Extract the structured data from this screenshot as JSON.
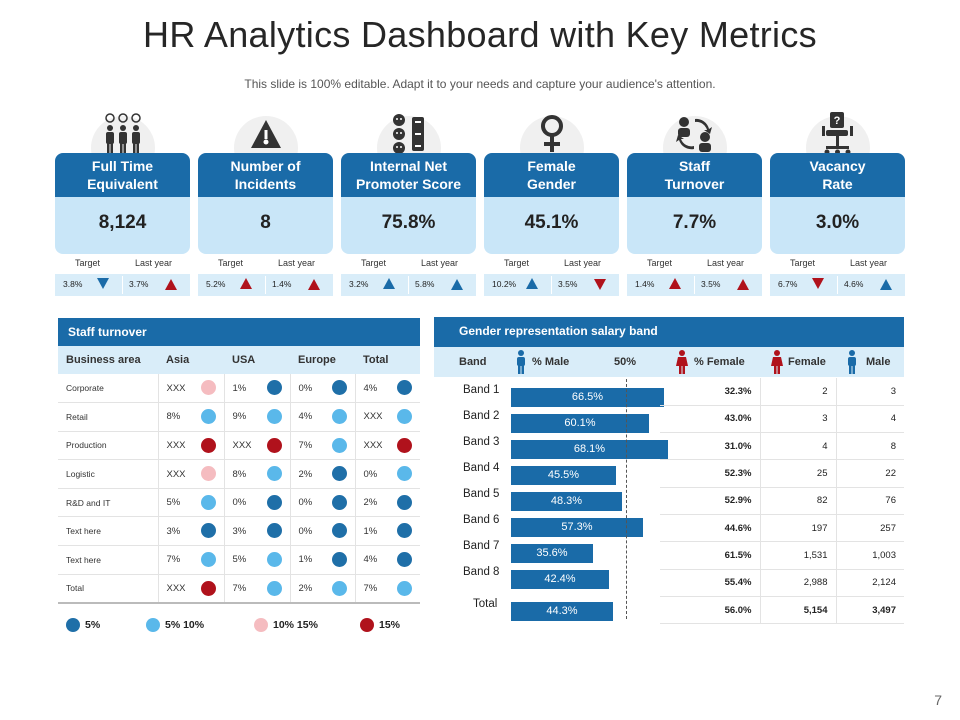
{
  "header": {
    "title": "HR Analytics Dashboard with Key Metrics",
    "subtitle": "This slide is 100% editable. Adapt it to your needs and capture your audience's attention.",
    "page_number": "7"
  },
  "colors": {
    "primary_blue": "#1a6ba8",
    "light_blue": "#c9e6f8",
    "pale_blue": "#d9edf9",
    "dot_dark": "#1f6fa8",
    "dot_light": "#5ab8ea",
    "dot_pink": "#f5bcc0",
    "dot_red": "#b0121c"
  },
  "kpis": [
    {
      "label": "Full Time\nEquivalent",
      "value": "8,124",
      "target_label": "Target",
      "last_label": "Last year",
      "target": "3.8%",
      "target_dir": "down",
      "target_color": "blue",
      "last": "3.7%",
      "last_dir": "up",
      "last_color": "red",
      "icon": "people-clock-icon"
    },
    {
      "label": "Number of\nIncidents",
      "value": "8",
      "target_label": "Target",
      "last_label": "Last year",
      "target": "5.2%",
      "target_dir": "up",
      "target_color": "red",
      "last": "1.4%",
      "last_dir": "up",
      "last_color": "red",
      "icon": "warning-icon"
    },
    {
      "label": "Internal Net\nPromoter Score",
      "value": "75.8%",
      "target_label": "Target",
      "last_label": "Last year",
      "target": "3.2%",
      "target_dir": "up",
      "target_color": "blue",
      "last": "5.8%",
      "last_dir": "up",
      "last_color": "blue",
      "icon": "feedback-faces-icon"
    },
    {
      "label": "Female\nGender",
      "value": "45.1%",
      "target_label": "Target",
      "last_label": "Last year",
      "target": "10.2%",
      "target_dir": "up",
      "target_color": "blue",
      "last": "3.5%",
      "last_dir": "down",
      "last_color": "red",
      "icon": "female-symbol-icon"
    },
    {
      "label": "Staff\nTurnover",
      "value": "7.7%",
      "target_label": "Target",
      "last_label": "Last year",
      "target": "1.4%",
      "target_dir": "up",
      "target_color": "red",
      "last": "3.5%",
      "last_dir": "up",
      "last_color": "red",
      "icon": "people-exchange-icon"
    },
    {
      "label": "Vacancy\nRate",
      "value": "3.0%",
      "target_label": "Target",
      "last_label": "Last year",
      "target": "6.7%",
      "target_dir": "down",
      "target_color": "red",
      "last": "4.6%",
      "last_dir": "up",
      "last_color": "blue",
      "icon": "empty-chair-icon"
    }
  ],
  "staff_turnover": {
    "title": "Staff turnover",
    "columns": [
      "Business area",
      "Asia",
      "USA",
      "Europe",
      "Total"
    ],
    "rows": [
      {
        "area": "Corporate",
        "cells": [
          {
            "v": "XXX",
            "d": "pink"
          },
          {
            "v": "1%",
            "d": "dark"
          },
          {
            "v": "0%",
            "d": "dark"
          },
          {
            "v": "4%",
            "d": "dark"
          }
        ]
      },
      {
        "area": "Retail",
        "cells": [
          {
            "v": "8%",
            "d": "light"
          },
          {
            "v": "9%",
            "d": "light"
          },
          {
            "v": "4%",
            "d": "light"
          },
          {
            "v": "XXX",
            "d": "light"
          }
        ]
      },
      {
        "area": "Production",
        "cells": [
          {
            "v": "XXX",
            "d": "red"
          },
          {
            "v": "XXX",
            "d": "red"
          },
          {
            "v": "7%",
            "d": "light"
          },
          {
            "v": "XXX",
            "d": "red"
          }
        ]
      },
      {
        "area": "Logistic",
        "cells": [
          {
            "v": "XXX",
            "d": "pink"
          },
          {
            "v": "8%",
            "d": "light"
          },
          {
            "v": "2%",
            "d": "dark"
          },
          {
            "v": "0%",
            "d": "light"
          }
        ]
      },
      {
        "area": "R&D and IT",
        "cells": [
          {
            "v": "5%",
            "d": "light"
          },
          {
            "v": "0%",
            "d": "dark"
          },
          {
            "v": "0%",
            "d": "dark"
          },
          {
            "v": "2%",
            "d": "dark"
          }
        ]
      },
      {
        "area": "Text here",
        "cells": [
          {
            "v": "3%",
            "d": "dark"
          },
          {
            "v": "3%",
            "d": "dark"
          },
          {
            "v": "0%",
            "d": "dark"
          },
          {
            "v": "1%",
            "d": "dark"
          }
        ]
      },
      {
        "area": "Text here",
        "cells": [
          {
            "v": "7%",
            "d": "light"
          },
          {
            "v": "5%",
            "d": "light"
          },
          {
            "v": "1%",
            "d": "dark"
          },
          {
            "v": "4%",
            "d": "dark"
          }
        ]
      },
      {
        "area": "Total",
        "cells": [
          {
            "v": "XXX",
            "d": "red"
          },
          {
            "v": "7%",
            "d": "light"
          },
          {
            "v": "2%",
            "d": "light"
          },
          {
            "v": "7%",
            "d": "light"
          }
        ]
      }
    ],
    "legend": [
      {
        "label": "5%",
        "d": "dark"
      },
      {
        "label": "5%  10%",
        "d": "light"
      },
      {
        "label": "10%  15%",
        "d": "pink"
      },
      {
        "label": "15%",
        "d": "red"
      }
    ]
  },
  "gender": {
    "title": "Gender representation salary band",
    "col_band": "Band",
    "col_male_pct": "% Male",
    "col_50": "50%",
    "col_female_pct": "% Female",
    "col_female": "Female",
    "col_male": "Male",
    "rows": [
      {
        "band": "Band 1",
        "male_pct": 66.5,
        "male_label": "66.5%",
        "female_pct": "32.3%",
        "female": "2",
        "male": "3"
      },
      {
        "band": "Band 2",
        "male_pct": 60.1,
        "male_label": "60.1%",
        "female_pct": "43.0%",
        "female": "3",
        "male": "4"
      },
      {
        "band": "Band 3",
        "male_pct": 68.1,
        "male_label": "68.1%",
        "female_pct": "31.0%",
        "female": "4",
        "male": "8"
      },
      {
        "band": "Band 4",
        "male_pct": 45.5,
        "male_label": "45.5%",
        "female_pct": "52.3%",
        "female": "25",
        "male": "22"
      },
      {
        "band": "Band 5",
        "male_pct": 48.3,
        "male_label": "48.3%",
        "female_pct": "52.9%",
        "female": "82",
        "male": "76"
      },
      {
        "band": "Band 6",
        "male_pct": 57.3,
        "male_label": "57.3%",
        "female_pct": "44.6%",
        "female": "197",
        "male": "257"
      },
      {
        "band": "Band 7",
        "male_pct": 35.6,
        "male_label": "35.6%",
        "female_pct": "61.5%",
        "female": "1,531",
        "male": "1,003"
      },
      {
        "band": "Band 8",
        "male_pct": 42.4,
        "male_label": "42.4%",
        "female_pct": "55.4%",
        "female": "2,988",
        "male": "2,124"
      },
      {
        "band": "Total",
        "male_pct": 44.3,
        "male_label": "44.3%",
        "female_pct": "56.0%",
        "female": "5,154",
        "male": "3,497"
      }
    ]
  }
}
